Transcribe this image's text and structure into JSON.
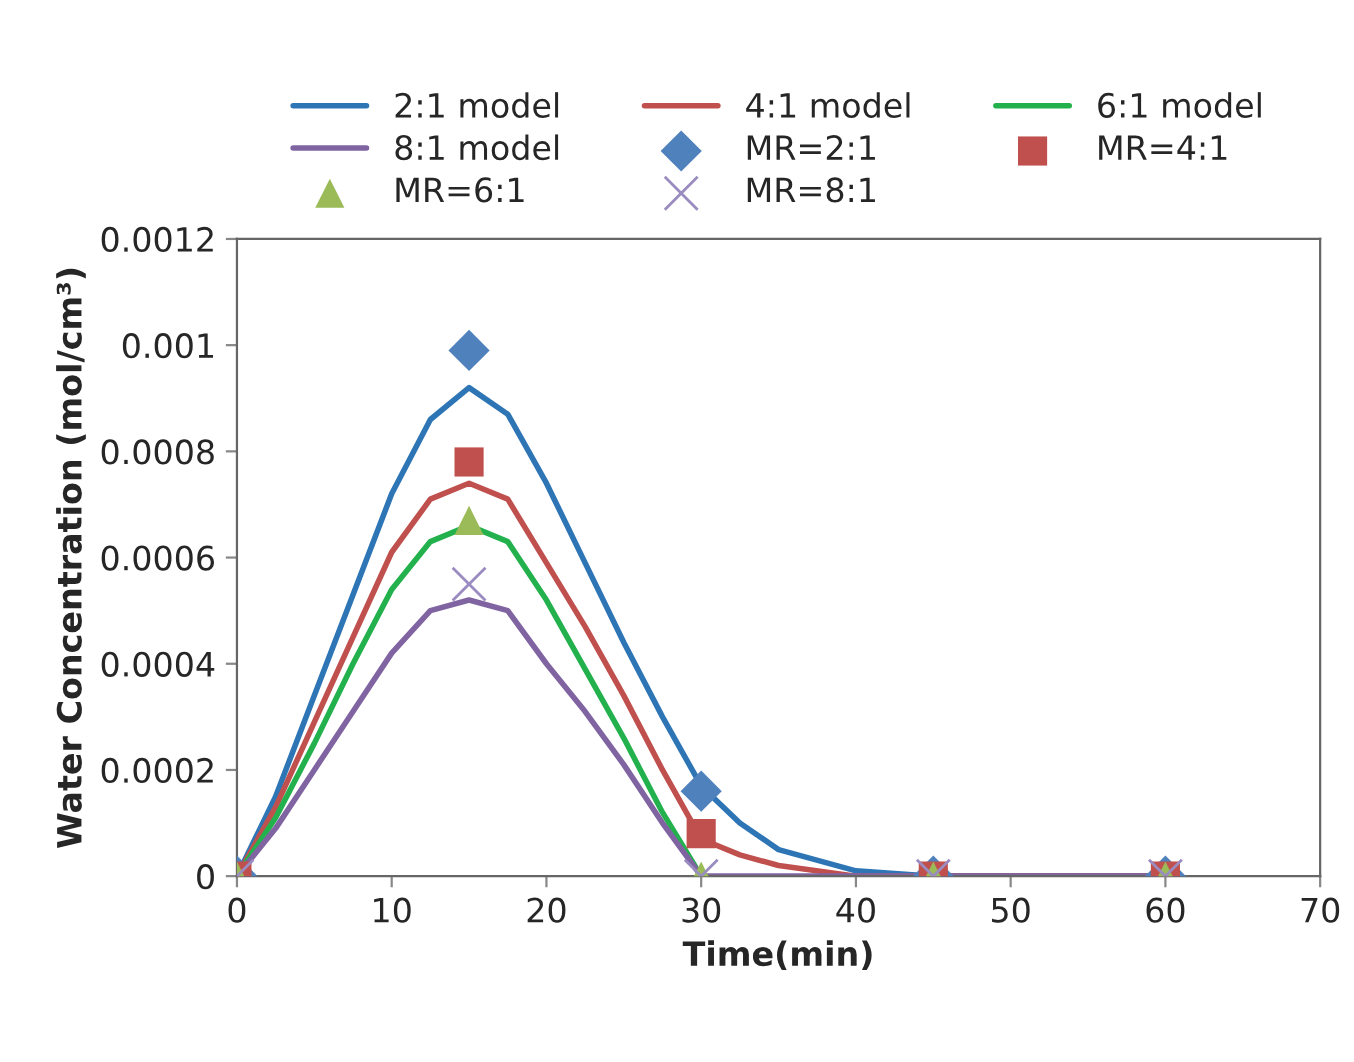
{
  "chart_data": {
    "type": "line",
    "xlabel": "Time(min)",
    "ylabel": "Water Concentration (mol/cm³)",
    "xlim": [
      0,
      70
    ],
    "xticks": [
      0,
      10,
      20,
      30,
      40,
      50,
      60,
      70
    ],
    "ylim": [
      0,
      0.0012
    ],
    "yticks": [
      0,
      0.0002,
      0.0004,
      0.0006,
      0.0008,
      0.001,
      0.0012
    ],
    "grid": false,
    "legend": "top",
    "series": [
      {
        "name": "2:1 model",
        "color": "#2e75b6",
        "x": [
          0,
          2.5,
          5,
          7.5,
          10,
          12.5,
          15,
          17.5,
          20,
          22.5,
          25,
          27.5,
          30,
          32.5,
          35,
          40,
          45,
          60
        ],
        "values": [
          0,
          0.00015,
          0.00034,
          0.00053,
          0.00072,
          0.00086,
          0.00092,
          0.00087,
          0.00074,
          0.00059,
          0.00044,
          0.0003,
          0.00017,
          0.0001,
          5e-05,
          1e-05,
          0,
          0
        ]
      },
      {
        "name": "4:1 model",
        "color": "#c0504d",
        "x": [
          0,
          2.5,
          5,
          7.5,
          10,
          12.5,
          15,
          17.5,
          20,
          22.5,
          25,
          27.5,
          30,
          32.5,
          35,
          40,
          45,
          60
        ],
        "values": [
          0,
          0.00013,
          0.00029,
          0.00045,
          0.00061,
          0.00071,
          0.00074,
          0.00071,
          0.00059,
          0.00047,
          0.00034,
          0.0002,
          7e-05,
          4e-05,
          2e-05,
          0,
          0,
          0
        ]
      },
      {
        "name": "6:1 model",
        "color": "#22b14c",
        "x": [
          0,
          2.5,
          5,
          7.5,
          10,
          12.5,
          15,
          17.5,
          20,
          22.5,
          25,
          27.5,
          30
        ],
        "values": [
          0,
          0.00011,
          0.00025,
          0.0004,
          0.00054,
          0.00063,
          0.00066,
          0.00063,
          0.00052,
          0.00039,
          0.00026,
          0.00012,
          0
        ]
      },
      {
        "name": "8:1 model",
        "color": "#8064a2",
        "x": [
          0,
          2.5,
          5,
          7.5,
          10,
          12.5,
          15,
          17.5,
          20,
          22.5,
          25,
          27.5,
          30,
          35,
          40,
          45,
          60
        ],
        "values": [
          0,
          9e-05,
          0.0002,
          0.00031,
          0.00042,
          0.0005,
          0.00052,
          0.0005,
          0.0004,
          0.00031,
          0.00021,
          0.0001,
          0,
          0,
          0,
          0,
          0
        ]
      },
      {
        "name": "MR=2:1",
        "type": "scatter",
        "marker": "diamond",
        "color": "#4f81bd",
        "x": [
          0,
          15,
          30,
          45,
          60
        ],
        "values": [
          0,
          0.00099,
          0.00016,
          0,
          0
        ]
      },
      {
        "name": "MR=4:1",
        "type": "scatter",
        "marker": "square",
        "color": "#c0504d",
        "x": [
          0,
          15,
          30,
          45,
          60
        ],
        "values": [
          0,
          0.00078,
          8e-05,
          0,
          0
        ]
      },
      {
        "name": "MR=6:1",
        "type": "scatter",
        "marker": "triangle",
        "color": "#9bbb59",
        "x": [
          0,
          15,
          30,
          45,
          60
        ],
        "values": [
          0,
          0.00067,
          0,
          0,
          0
        ]
      },
      {
        "name": "MR=8:1",
        "type": "scatter",
        "marker": "cross",
        "color": "#9a8cc0",
        "x": [
          0,
          15,
          30,
          45,
          60
        ],
        "values": [
          0,
          0.00055,
          0,
          0,
          0
        ]
      }
    ]
  }
}
